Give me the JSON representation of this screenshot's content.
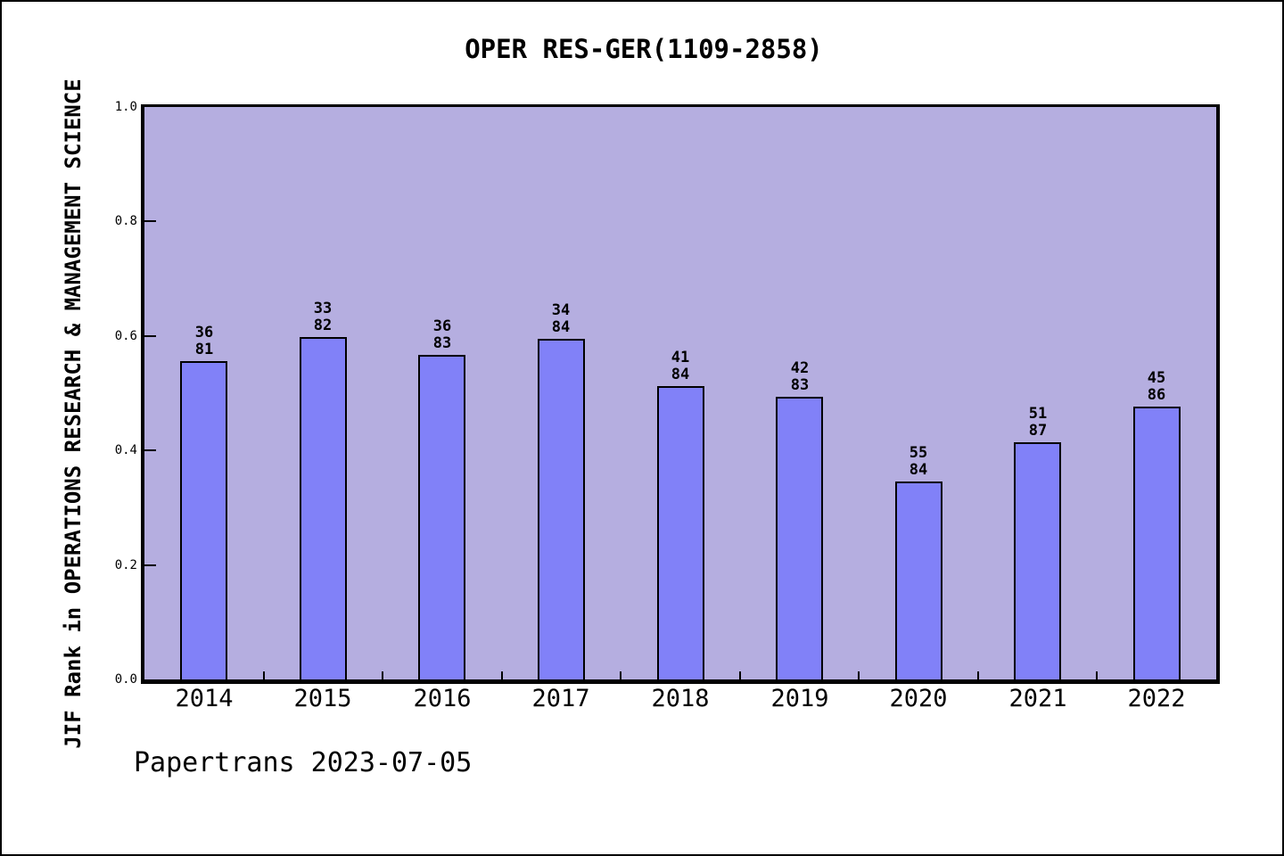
{
  "chart_data": {
    "type": "bar",
    "title": "OPER RES-GER(1109-2858)",
    "ylabel": "JIF Rank in OPERATIONS RESEARCH & MANAGEMENT SCIENCE",
    "footer": "Papertrans 2023-07-05",
    "categories": [
      "2014",
      "2015",
      "2016",
      "2017",
      "2018",
      "2019",
      "2020",
      "2021",
      "2022"
    ],
    "bars": [
      {
        "year": "2014",
        "rank": 36,
        "total": 81,
        "value": 0.5556
      },
      {
        "year": "2015",
        "rank": 33,
        "total": 82,
        "value": 0.5976
      },
      {
        "year": "2016",
        "rank": 36,
        "total": 83,
        "value": 0.5663
      },
      {
        "year": "2017",
        "rank": 34,
        "total": 84,
        "value": 0.5952
      },
      {
        "year": "2018",
        "rank": 41,
        "total": 84,
        "value": 0.5119
      },
      {
        "year": "2019",
        "rank": 42,
        "total": 83,
        "value": 0.494
      },
      {
        "year": "2020",
        "rank": 55,
        "total": 84,
        "value": 0.3452
      },
      {
        "year": "2021",
        "rank": 51,
        "total": 87,
        "value": 0.4138
      },
      {
        "year": "2022",
        "rank": 45,
        "total": 86,
        "value": 0.4767
      }
    ],
    "yticks": [
      {
        "value": 0.0,
        "label": "0.0"
      },
      {
        "value": 0.2,
        "label": "0.2"
      },
      {
        "value": 0.4,
        "label": "0.4"
      },
      {
        "value": 0.6,
        "label": "0.6"
      },
      {
        "value": 0.8,
        "label": "0.8"
      },
      {
        "value": 1.0,
        "label": "1.0"
      }
    ],
    "ylim": [
      0,
      1
    ],
    "legend": null,
    "grid": false,
    "colors": {
      "bar_fill": "#8181f8",
      "bar_edge": "#000000",
      "plot_background": "#b5aee0",
      "page_background": "#ffffff",
      "text": "#000000"
    }
  }
}
